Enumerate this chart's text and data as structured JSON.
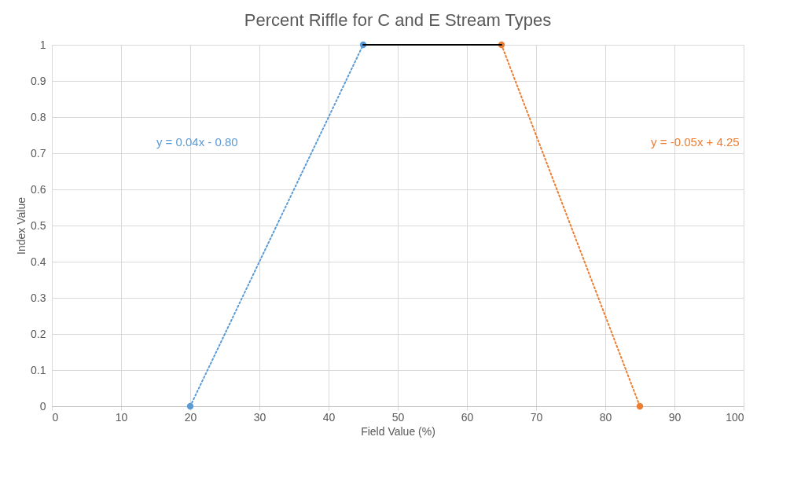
{
  "chart_data": {
    "type": "scatter",
    "title": "Percent Riffle for C and E Stream Types",
    "xlabel": "Field Value (%)",
    "ylabel": "Index Value",
    "series": [
      {
        "color": "#5b9bd5",
        "x": [
          20,
          45
        ],
        "values": [
          0,
          1
        ],
        "marker": "circle"
      },
      {
        "color": "#ed7d31",
        "x": [
          65,
          85
        ],
        "values": [
          1,
          0
        ],
        "marker": "circle"
      },
      {
        "type": "line",
        "color": "#5b9bd5",
        "x": [
          20,
          45
        ],
        "values": [
          0,
          1
        ],
        "line_style": "dotted"
      },
      {
        "type": "line",
        "color": "#ed7d31",
        "x": [
          65,
          85
        ],
        "values": [
          1,
          0
        ],
        "line_style": "dotted"
      },
      {
        "type": "line",
        "color": "#000000",
        "x": [
          45,
          65
        ],
        "values": [
          1,
          1
        ],
        "line_style": "solid"
      }
    ],
    "annotations": [
      "y = 0.04x - 0.80",
      "y = -0.05x + 4.25"
    ],
    "xlim": [
      0,
      100
    ],
    "xticks": [
      0,
      10,
      20,
      30,
      40,
      50,
      60,
      70,
      80,
      90,
      100
    ],
    "ylim": [
      0,
      1
    ],
    "yticks": [
      0,
      0.1,
      0.2,
      0.3,
      0.4,
      0.5,
      0.6,
      0.7,
      0.8,
      0.9,
      1
    ],
    "grid": true
  }
}
